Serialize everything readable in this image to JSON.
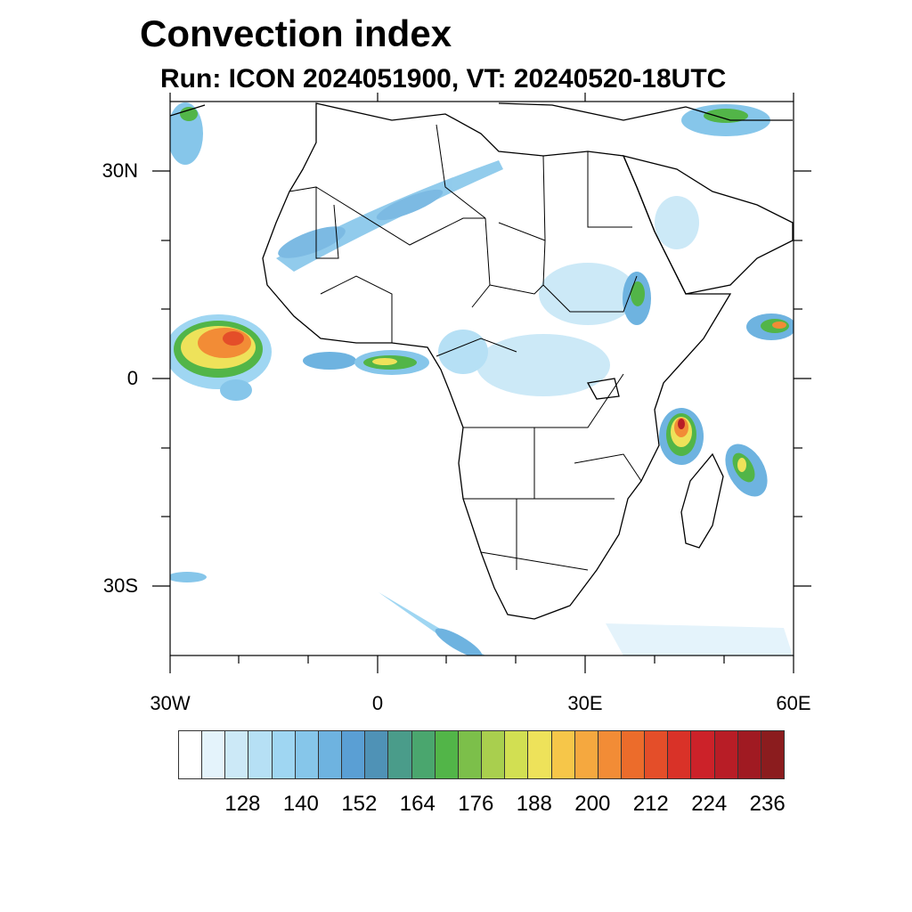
{
  "title": "Convection index",
  "subtitle": "Run: ICON 2024051900,  VT: 20240520-18UTC",
  "map": {
    "lon_range": [
      -30,
      60
    ],
    "lat_range": [
      -40,
      40
    ],
    "x_ticks": [
      {
        "lon": -30,
        "label": "30W"
      },
      {
        "lon": 0,
        "label": "0"
      },
      {
        "lon": 30,
        "label": "30E"
      },
      {
        "lon": 60,
        "label": "60E"
      }
    ],
    "y_ticks": [
      {
        "lat": 30,
        "label": "30N"
      },
      {
        "lat": 0,
        "label": "0"
      },
      {
        "lat": -30,
        "label": "30S"
      }
    ],
    "minor_lon_step": 10,
    "minor_lat_step": 10
  },
  "legend": {
    "colors": [
      "#ffffff",
      "#e4f3fb",
      "#cce9f7",
      "#b6e0f5",
      "#9fd6f2",
      "#86c6ea",
      "#6eb3e0",
      "#5a9fd4",
      "#4f92b6",
      "#4a9c8a",
      "#4aa66e",
      "#52b548",
      "#7cbf4a",
      "#a9cf4e",
      "#d2df52",
      "#eee25a",
      "#f6c649",
      "#f5a83f",
      "#f28c36",
      "#ec6c2b",
      "#e44e29",
      "#d93228",
      "#cc2229",
      "#b81d26",
      "#a01a22",
      "#8b1c1e"
    ],
    "labels": [
      {
        "value": "128",
        "index": 3
      },
      {
        "value": "140",
        "index": 6
      },
      {
        "value": "152",
        "index": 9
      },
      {
        "value": "164",
        "index": 12
      },
      {
        "value": "176",
        "index": 15
      },
      {
        "value": "188",
        "index": 18
      },
      {
        "value": "200",
        "index": 21
      },
      {
        "value": "212",
        "index": 24
      },
      {
        "value": "224",
        "index": 27
      },
      {
        "value": "236",
        "index": 30
      }
    ]
  }
}
